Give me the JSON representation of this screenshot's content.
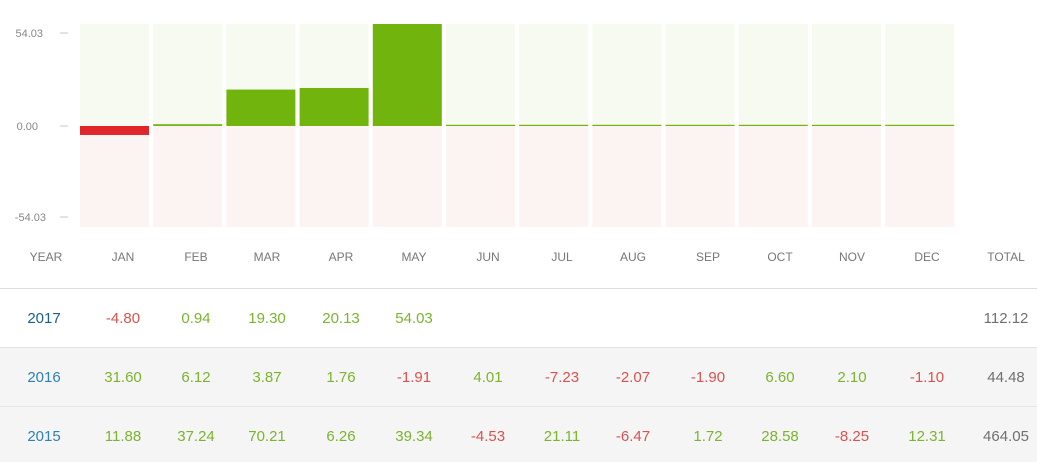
{
  "chart_data": {
    "type": "bar",
    "categories": [
      "JAN",
      "FEB",
      "MAR",
      "APR",
      "MAY",
      "JUN",
      "JUL",
      "AUG",
      "SEP",
      "OCT",
      "NOV",
      "DEC"
    ],
    "values": [
      -4.8,
      0.94,
      19.3,
      20.13,
      54.03,
      0,
      0,
      0,
      0,
      0,
      0,
      0
    ],
    "ylim": [
      -54.03,
      54.03
    ],
    "yticks": [
      "54.03",
      "0.00",
      "-54.03"
    ],
    "grid": false,
    "colors": {
      "positive": "#72b40e",
      "negative": "#e0262b",
      "pos_bg": "#f7faf1",
      "neg_bg": "#fcf3f3"
    }
  },
  "table": {
    "headers": [
      "YEAR",
      "JAN",
      "FEB",
      "MAR",
      "APR",
      "MAY",
      "JUN",
      "JUL",
      "AUG",
      "SEP",
      "OCT",
      "NOV",
      "DEC",
      "TOTAL"
    ],
    "rows": [
      {
        "year": "2017",
        "months": [
          "-4.80",
          "0.94",
          "19.30",
          "20.13",
          "54.03",
          "",
          "",
          "",
          "",
          "",
          "",
          ""
        ],
        "total": "112.12"
      },
      {
        "year": "2016",
        "months": [
          "31.60",
          "6.12",
          "3.87",
          "1.76",
          "-1.91",
          "4.01",
          "-7.23",
          "-2.07",
          "-1.90",
          "6.60",
          "2.10",
          "-1.10"
        ],
        "total": "44.48"
      },
      {
        "year": "2015",
        "months": [
          "11.88",
          "37.24",
          "70.21",
          "6.26",
          "39.34",
          "-4.53",
          "21.11",
          "-6.47",
          "1.72",
          "28.58",
          "-8.25",
          "12.31"
        ],
        "total": "464.05"
      }
    ]
  }
}
